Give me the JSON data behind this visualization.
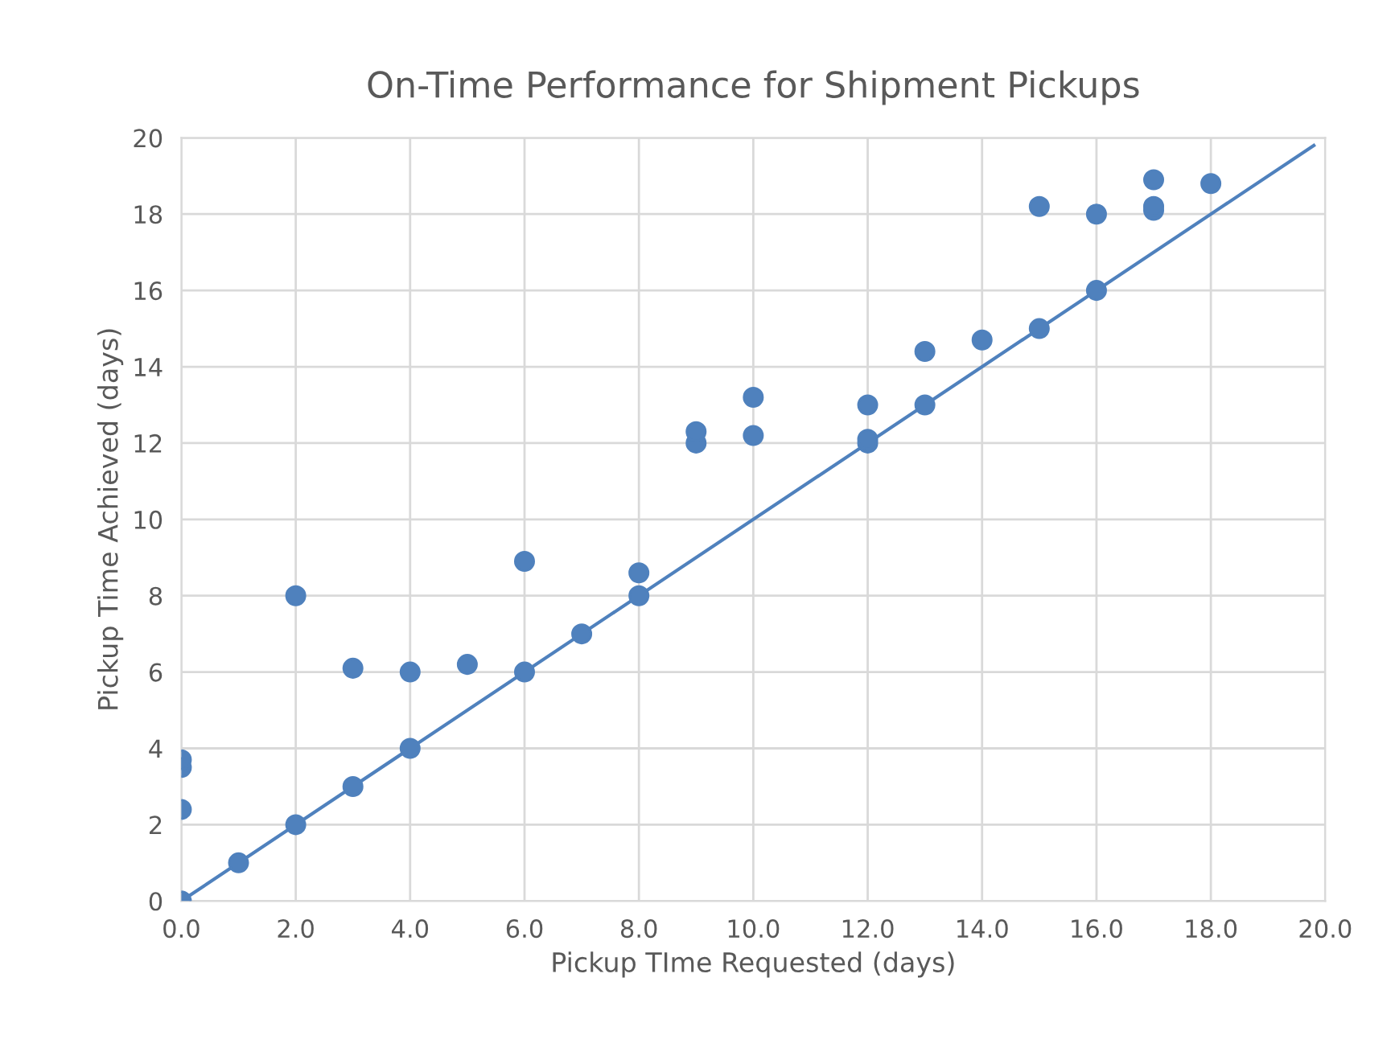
{
  "chart_data": {
    "type": "scatter",
    "title": "On-Time Performance for Shipment Pickups",
    "xlabel": "Pickup TIme Requested (days)",
    "ylabel": "Pickup Time Achieved (days)",
    "series": [
      {
        "color": "#4f81bd",
        "x": [
          0,
          0,
          0,
          0,
          1,
          2,
          2,
          3,
          3,
          4,
          4,
          5,
          6,
          6,
          7,
          8,
          8,
          9,
          9,
          10,
          10,
          12,
          12,
          12,
          13,
          13,
          14,
          15,
          15,
          16,
          16,
          17,
          17,
          17,
          18
        ],
        "values": [
          0,
          2.4,
          3.5,
          3.7,
          1,
          2,
          8,
          3,
          6.1,
          4,
          6,
          6.2,
          6,
          8.9,
          7,
          8,
          8.6,
          12,
          12.3,
          12.2,
          13.2,
          12,
          12.1,
          13,
          13,
          14.4,
          14.7,
          15,
          18.2,
          16,
          18,
          18.1,
          18.2,
          18.9,
          18.8
        ]
      },
      {
        "type": "line",
        "marker": "none",
        "color": "#4f81bd",
        "x": [
          0,
          19.8
        ],
        "values": [
          0,
          19.8
        ]
      }
    ],
    "xlim": [
      0,
      20
    ],
    "ylim": [
      0,
      20
    ],
    "xticks": [
      {
        "value": 0,
        "label": "0.0"
      },
      {
        "value": 2,
        "label": "2.0"
      },
      {
        "value": 4,
        "label": "4.0"
      },
      {
        "value": 6,
        "label": "6.0"
      },
      {
        "value": 8,
        "label": "8.0"
      },
      {
        "value": 10,
        "label": "10.0"
      },
      {
        "value": 12,
        "label": "12.0"
      },
      {
        "value": 14,
        "label": "14.0"
      },
      {
        "value": 16,
        "label": "16.0"
      },
      {
        "value": 18,
        "label": "18.0"
      },
      {
        "value": 20,
        "label": "20.0"
      }
    ],
    "yticks": [
      0,
      2,
      4,
      6,
      8,
      10,
      12,
      14,
      16,
      18,
      20
    ],
    "grid": true,
    "marker": "circle",
    "legend": false
  }
}
